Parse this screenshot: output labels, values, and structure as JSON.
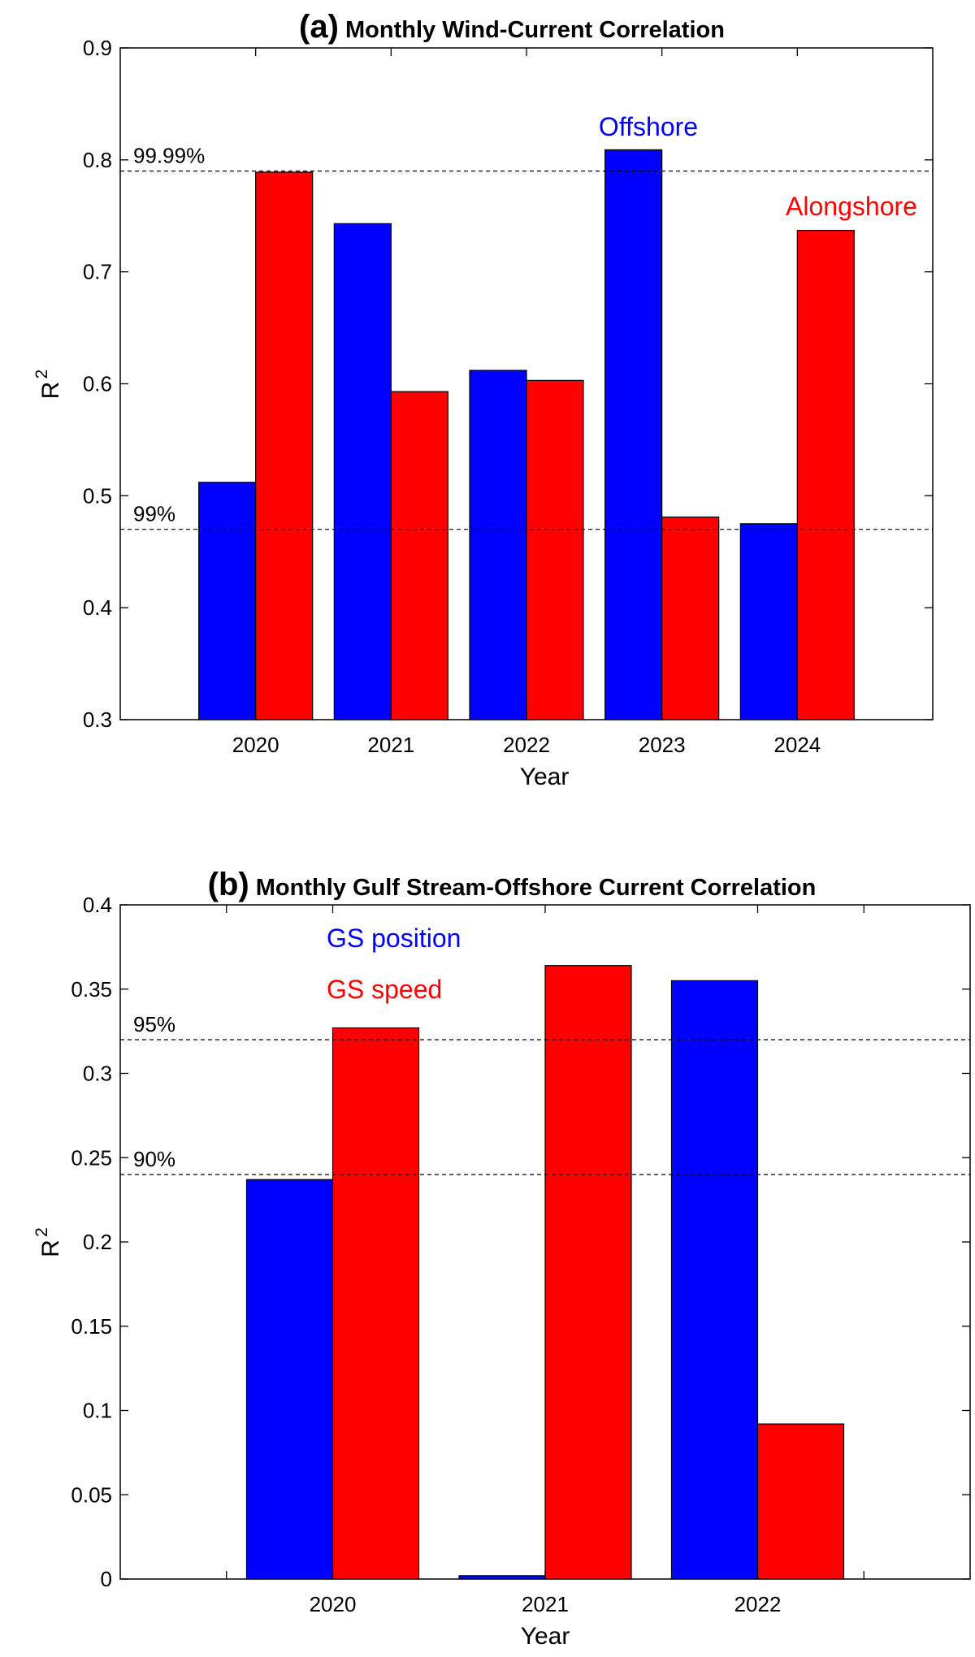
{
  "chart_data": [
    {
      "type": "bar",
      "panel_label": "(a)",
      "title": "Monthly Wind-Current Correlation",
      "xlabel": "Year",
      "ylabel": "R",
      "ylabel_superscript": "2",
      "ylim": [
        0.3,
        0.9
      ],
      "yticks": [
        0.3,
        0.4,
        0.5,
        0.6,
        0.7,
        0.8,
        0.9
      ],
      "ytick_labels": [
        "0.3",
        "0.4",
        "0.5",
        "0.6",
        "0.7",
        "0.8",
        "0.9"
      ],
      "categories": [
        "2020",
        "2021",
        "2022",
        "2023",
        "2024"
      ],
      "series": [
        {
          "name": "Offshore",
          "color": "#0000ff",
          "values": [
            0.512,
            0.743,
            0.612,
            0.809,
            0.475
          ]
        },
        {
          "name": "Alongshore",
          "color": "#ff0000",
          "values": [
            0.789,
            0.593,
            0.603,
            0.481,
            0.737
          ]
        }
      ],
      "reference_lines": [
        {
          "label": "99.99%",
          "value": 0.79
        },
        {
          "label": "99%",
          "value": 0.47
        }
      ],
      "legend_placement": "top-right",
      "grid": false
    },
    {
      "type": "bar",
      "panel_label": "(b)",
      "title": "Monthly Gulf Stream-Offshore Current Correlation",
      "xlabel": "Year",
      "ylabel": "R",
      "ylabel_superscript": "2",
      "ylim": [
        0,
        0.4
      ],
      "yticks": [
        0,
        0.05,
        0.1,
        0.15,
        0.2,
        0.25,
        0.3,
        0.35,
        0.4
      ],
      "ytick_labels": [
        "0",
        "0.05",
        "0.1",
        "0.15",
        "0.2",
        "0.25",
        "0.3",
        "0.35",
        "0.4"
      ],
      "categories": [
        "2020",
        "2021",
        "2022"
      ],
      "series": [
        {
          "name": "GS position",
          "color": "#0000ff",
          "values": [
            0.237,
            0.002,
            0.355
          ]
        },
        {
          "name": "GS speed",
          "color": "#ff0000",
          "values": [
            0.327,
            0.364,
            0.092
          ]
        }
      ],
      "reference_lines": [
        {
          "label": "95%",
          "value": 0.32
        },
        {
          "label": "90%",
          "value": 0.24
        }
      ],
      "legend_placement": "top-left",
      "grid": false
    }
  ]
}
